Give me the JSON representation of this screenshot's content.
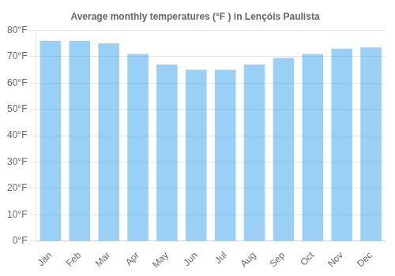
{
  "chart_data": {
    "type": "bar",
    "title": "Average monthly temperatures (°F ) in Lençóis Paulista",
    "categories": [
      "Jan",
      "Feb",
      "Mar",
      "Apr",
      "May",
      "Jun",
      "Jul",
      "Aug",
      "Sep",
      "Oct",
      "Nov",
      "Dec"
    ],
    "values": [
      76,
      76,
      75,
      71,
      67,
      65,
      65,
      67,
      69.5,
      71,
      73,
      73.5
    ],
    "ylim": [
      0,
      80
    ],
    "yticks": [
      {
        "value": 0,
        "label": "0°F"
      },
      {
        "value": 10,
        "label": "10°F"
      },
      {
        "value": 20,
        "label": "20°F"
      },
      {
        "value": 30,
        "label": "30°F"
      },
      {
        "value": 40,
        "label": "40°F"
      },
      {
        "value": 50,
        "label": "50°F"
      },
      {
        "value": 60,
        "label": "60°F"
      },
      {
        "value": 70,
        "label": "70°F"
      },
      {
        "value": 80,
        "label": "80°F"
      }
    ],
    "grid": true
  }
}
